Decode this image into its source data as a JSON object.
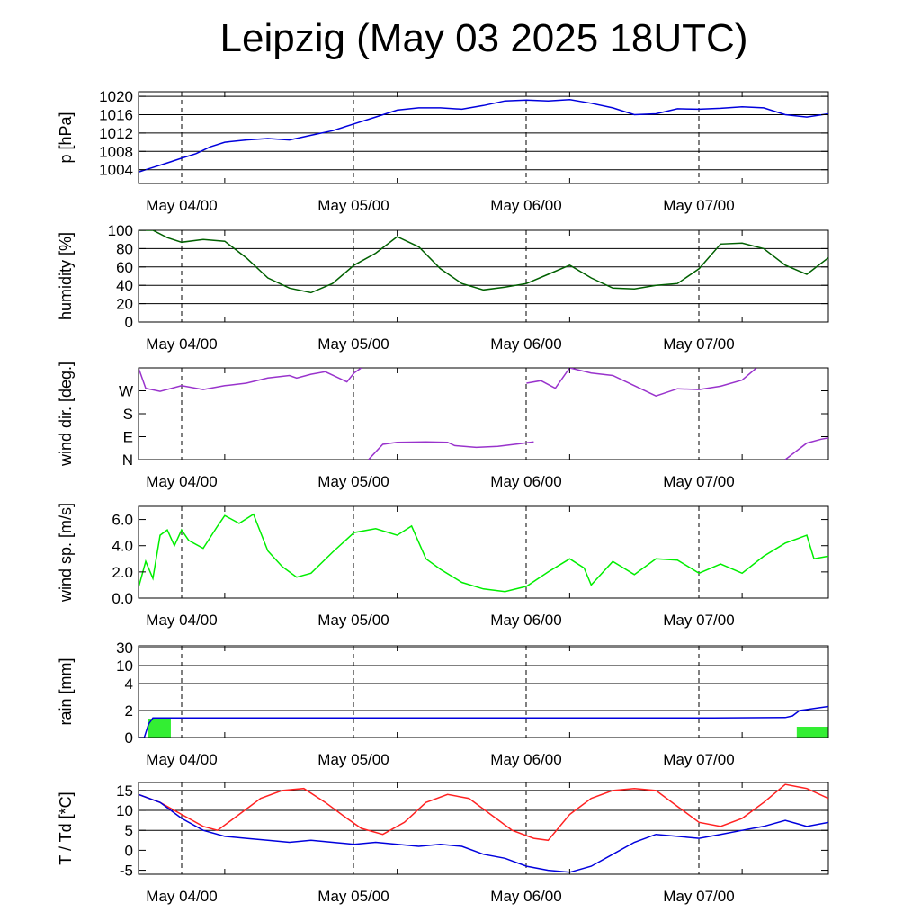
{
  "title": "Leipzig (May 03 2025 18UTC)",
  "date_labels": [
    "May 04/00",
    "May 05/00",
    "May 06/00",
    "May 07/00"
  ],
  "chart_data": [
    {
      "type": "line",
      "ylabel": "p [hPa]",
      "ylim": [
        1001,
        1021
      ],
      "yticks": [
        1004,
        1008,
        1012,
        1016,
        1020
      ],
      "grid_y": [
        1004,
        1008,
        1012,
        1016,
        1020
      ],
      "x_unit": "hours since May 03 18UTC",
      "x_range": [
        0,
        96
      ],
      "series": [
        {
          "color": "#0000dd",
          "x": [
            0,
            1,
            2,
            4,
            6,
            8,
            10,
            12,
            15,
            18,
            21,
            24,
            27,
            30,
            33,
            36,
            39,
            42,
            45,
            48,
            51,
            54,
            57,
            60,
            63,
            66,
            69,
            72,
            75,
            78,
            81,
            84,
            87,
            90,
            93,
            96
          ],
          "y": [
            1003.5,
            1004,
            1004.5,
            1005.5,
            1006.5,
            1007.5,
            1009,
            1010,
            1010.5,
            1010.8,
            1010.5,
            1011.5,
            1012.5,
            1014,
            1015.5,
            1017,
            1017.5,
            1017.5,
            1017.2,
            1018,
            1019,
            1019.2,
            1019,
            1019.3,
            1018.5,
            1017.5,
            1016,
            1016.2,
            1017.3,
            1017.2,
            1017.4,
            1017.7,
            1017.5,
            1016,
            1015.5,
            1016.2
          ]
        }
      ]
    },
    {
      "type": "line",
      "ylabel": "humidity [%]",
      "ylim": [
        0,
        100
      ],
      "yticks": [
        0,
        20,
        40,
        60,
        80,
        100
      ],
      "grid_y": [
        20,
        40,
        60,
        80,
        100
      ],
      "x_range": [
        0,
        96
      ],
      "series": [
        {
          "color": "#006000",
          "x": [
            0,
            2,
            4,
            6,
            9,
            12,
            15,
            18,
            21,
            24,
            27,
            30,
            33,
            36,
            39,
            42,
            45,
            48,
            51,
            54,
            57,
            60,
            63,
            66,
            69,
            72,
            75,
            78,
            81,
            84,
            87,
            90,
            93,
            96
          ],
          "y": [
            100,
            100,
            92,
            87,
            90,
            88,
            70,
            48,
            37,
            32,
            42,
            62,
            75,
            93,
            82,
            58,
            42,
            35,
            38,
            42,
            52,
            62,
            48,
            37,
            36,
            40,
            42,
            58,
            85,
            86,
            80,
            62,
            52,
            70
          ]
        }
      ]
    },
    {
      "type": "line",
      "ylabel": "wind dir. [deg.]",
      "ylim": [
        0,
        360
      ],
      "yticks": [
        0,
        90,
        180,
        270
      ],
      "ytick_labels": [
        "N",
        "E",
        "S",
        "W"
      ],
      "x_range": [
        0,
        96
      ],
      "segments": [
        {
          "color": "#9933cc",
          "x": [
            0,
            1,
            3,
            6,
            9,
            12,
            15,
            18,
            21,
            22,
            24,
            26,
            29,
            30,
            31
          ],
          "y": [
            360,
            280,
            268,
            290,
            275,
            290,
            300,
            320,
            330,
            320,
            335,
            345,
            305,
            340,
            360
          ]
        },
        {
          "color": "#9933cc",
          "x": [
            32,
            34,
            36,
            40,
            43,
            44,
            47,
            50,
            53,
            55
          ],
          "y": [
            0,
            60,
            68,
            70,
            68,
            55,
            48,
            52,
            62,
            70
          ]
        },
        {
          "color": "#9933cc",
          "x": [
            54,
            56,
            58,
            60,
            63,
            66,
            69,
            72,
            75,
            78,
            81,
            84,
            86
          ],
          "y": [
            300,
            310,
            280,
            360,
            340,
            330,
            290,
            250,
            278,
            275,
            288,
            312,
            360
          ]
        },
        {
          "color": "#9933cc",
          "x": [
            90,
            93,
            95,
            96
          ],
          "y": [
            0,
            65,
            80,
            85
          ]
        }
      ]
    },
    {
      "type": "line",
      "ylabel": "wind sp. [m/s]",
      "ylim": [
        0,
        7
      ],
      "yticks": [
        0,
        2,
        4,
        6
      ],
      "ytick_labels": [
        "0.0",
        "2.0",
        "4.0",
        "6.0"
      ],
      "x_range": [
        0,
        96
      ],
      "series": [
        {
          "color": "#00ee00",
          "x": [
            0,
            1,
            2,
            3,
            4,
            5,
            6,
            7,
            9,
            11,
            12,
            14,
            16,
            18,
            20,
            22,
            24,
            27,
            30,
            33,
            36,
            38,
            40,
            42,
            45,
            48,
            51,
            54,
            57,
            60,
            62,
            63,
            66,
            69,
            72,
            75,
            78,
            81,
            84,
            87,
            90,
            93,
            94,
            96
          ],
          "y": [
            0.8,
            2.8,
            1.5,
            4.8,
            5.2,
            4.0,
            5.2,
            4.4,
            3.8,
            5.5,
            6.3,
            5.7,
            6.4,
            3.6,
            2.4,
            1.6,
            1.9,
            3.5,
            5.0,
            5.3,
            4.8,
            5.5,
            3.0,
            2.2,
            1.2,
            0.7,
            0.5,
            0.9,
            2.0,
            3.0,
            2.3,
            1.0,
            2.8,
            1.8,
            3.0,
            2.9,
            1.9,
            2.6,
            1.9,
            3.2,
            4.2,
            4.8,
            3.0,
            3.2
          ]
        }
      ]
    },
    {
      "type": "line",
      "ylabel": "rain [mm]",
      "scale": "nonlinear",
      "yticks": [
        0,
        2,
        4,
        10,
        30
      ],
      "grid_y": [
        2,
        4,
        10,
        30
      ],
      "x_range": [
        0,
        96
      ],
      "bars": [
        {
          "x0": 1.3,
          "x1": 4.5,
          "value": 1.4,
          "color": "#33ee33"
        },
        {
          "x0": 91.6,
          "x1": 96,
          "value": 0.8,
          "color": "#33ee33"
        }
      ],
      "series": [
        {
          "color": "#0000dd",
          "x": [
            0,
            0.8,
            1.4,
            2,
            40,
            80,
            90,
            91,
            92,
            96
          ],
          "y": [
            0,
            0,
            1.0,
            1.45,
            1.45,
            1.45,
            1.48,
            1.6,
            2.0,
            2.3
          ]
        }
      ]
    },
    {
      "type": "line",
      "ylabel": "T / Td [*C]",
      "ylim": [
        -6,
        17
      ],
      "yticks": [
        -5,
        0,
        5,
        10,
        15
      ],
      "grid_y": [
        5,
        10,
        15
      ],
      "x_range": [
        0,
        96
      ],
      "series": [
        {
          "color": "#ff2222",
          "x": [
            0,
            3,
            6,
            9,
            11,
            14,
            17,
            20,
            23,
            26,
            29,
            31,
            34,
            37,
            40,
            43,
            46,
            49,
            52,
            55,
            57,
            60,
            63,
            66,
            69,
            72,
            75,
            78,
            81,
            84,
            87,
            90,
            93,
            96
          ],
          "y": [
            14,
            12,
            9,
            6,
            5,
            9,
            13,
            15,
            15.5,
            12,
            8,
            5.5,
            4,
            7,
            12,
            14,
            13,
            9,
            5,
            3,
            2.5,
            9,
            13,
            15,
            15.5,
            15,
            11,
            7,
            6,
            8,
            12,
            16.5,
            15.5,
            13
          ]
        },
        {
          "color": "#0000dd",
          "x": [
            0,
            3,
            6,
            9,
            12,
            15,
            18,
            21,
            24,
            27,
            30,
            33,
            36,
            39,
            42,
            45,
            48,
            51,
            54,
            57,
            60,
            63,
            66,
            69,
            72,
            75,
            78,
            81,
            84,
            87,
            90,
            93,
            96
          ],
          "y": [
            14,
            12,
            8,
            5,
            3.5,
            3,
            2.5,
            2,
            2.5,
            2,
            1.5,
            2,
            1.5,
            1,
            1.5,
            1,
            -1,
            -2,
            -4,
            -5,
            -5.5,
            -4,
            -1,
            2,
            4,
            3.5,
            3,
            4,
            5,
            6,
            7.5,
            6,
            7
          ]
        }
      ]
    }
  ]
}
